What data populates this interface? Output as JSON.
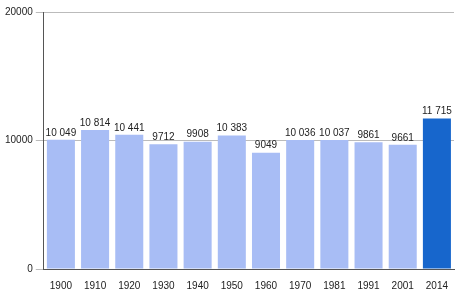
{
  "chart_data": {
    "type": "bar",
    "categories": [
      "1900",
      "1910",
      "1920",
      "1930",
      "1940",
      "1950",
      "1960",
      "1970",
      "1981",
      "1991",
      "2001",
      "2014"
    ],
    "values": [
      10049,
      10814,
      10441,
      9712,
      9908,
      10383,
      9049,
      10036,
      10037,
      9861,
      9661,
      11715
    ],
    "value_labels": [
      "10 049",
      "10 814",
      "10 441",
      "9712",
      "9908",
      "10 383",
      "9049",
      "10 036",
      "10 037",
      "9861",
      "9661",
      "11 715"
    ],
    "data_labels": true,
    "colors": [
      "#a8bdf5",
      "#a8bdf5",
      "#a8bdf5",
      "#a8bdf5",
      "#a8bdf5",
      "#a8bdf5",
      "#a8bdf5",
      "#a8bdf5",
      "#a8bdf5",
      "#a8bdf5",
      "#a8bdf5",
      "#1766cc"
    ],
    "ylim": [
      0,
      20000
    ],
    "yticks": [
      0,
      10000,
      20000
    ],
    "grid": true
  }
}
